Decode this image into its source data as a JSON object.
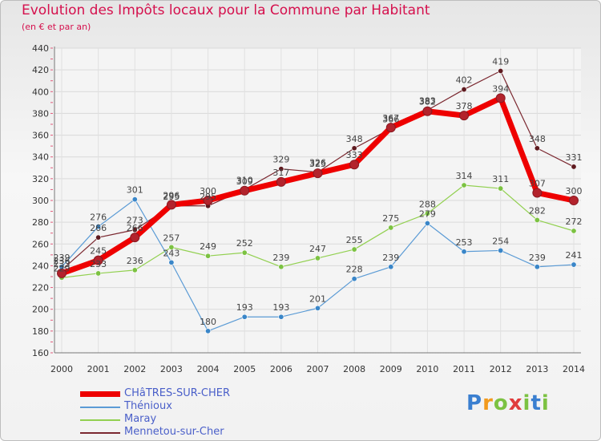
{
  "title": "Evolution des Impôts locaux pour la Commune par Habitant",
  "subtitle": "(en € et par an)",
  "logo_text": "Proxiti",
  "chart_data": {
    "type": "line",
    "title": "Evolution des Impôts locaux pour la Commune par Habitant",
    "subtitle": "(en € et par an)",
    "xlabel": "",
    "ylabel": "",
    "x": [
      "2000",
      "2001",
      "2002",
      "2003",
      "2004",
      "2005",
      "2006",
      "2007",
      "2008",
      "2009",
      "2010",
      "2011",
      "2012",
      "2013",
      "2014"
    ],
    "ylim": [
      160,
      440
    ],
    "yticks": [
      160,
      180,
      200,
      220,
      240,
      260,
      280,
      300,
      320,
      340,
      360,
      380,
      400,
      420,
      440
    ],
    "legend_position": "bottom-left",
    "series": [
      {
        "name": "CHâTRES-SUR-CHER",
        "color": "#ee0000",
        "dot_color": "#b3232c",
        "width": 7,
        "values": [
          233,
          245,
          266,
          296,
          300,
          309,
          317,
          325,
          333,
          367,
          382,
          378,
          394,
          307,
          300
        ],
        "labels": [
          "233",
          "245",
          "266",
          "296",
          "300",
          "309",
          "317",
          "325",
          "333",
          "367",
          "382",
          "378",
          "394",
          "307",
          "300"
        ]
      },
      {
        "name": "Thénioux",
        "color": "#5b9bd5",
        "dot_color": "#3a86c8",
        "width": 1.2,
        "values": [
          239,
          276,
          301,
          243,
          180,
          193,
          193,
          201,
          228,
          239,
          279,
          253,
          254,
          239,
          241
        ],
        "labels": [
          "239",
          "276",
          "301",
          "243",
          "180",
          "193",
          "193",
          "201",
          "228",
          "239",
          "279",
          "253",
          "254",
          "239",
          "241"
        ]
      },
      {
        "name": "Maray",
        "color": "#92d050",
        "dot_color": "#7cc242",
        "width": 1.2,
        "values": [
          229,
          233,
          236,
          257,
          249,
          252,
          239,
          247,
          255,
          275,
          288,
          314,
          311,
          282,
          272
        ],
        "labels": [
          "229",
          "233",
          "236",
          "257",
          "249",
          "252",
          "239",
          "247",
          "255",
          "275",
          "288",
          "314",
          "311",
          "282",
          "272"
        ]
      },
      {
        "name": "Mennetou-sur-Cher",
        "color": "#7b2830",
        "dot_color": "#5e1a1f",
        "width": 1.2,
        "values": [
          236,
          266,
          273,
          295,
          295,
          310,
          329,
          326,
          348,
          366,
          383,
          402,
          419,
          348,
          331
        ],
        "labels": [
          "236",
          "266",
          "273",
          "295",
          "295",
          "310",
          "329",
          "326",
          "348",
          "366",
          "383",
          "402",
          "419",
          "348",
          "331"
        ]
      }
    ]
  }
}
